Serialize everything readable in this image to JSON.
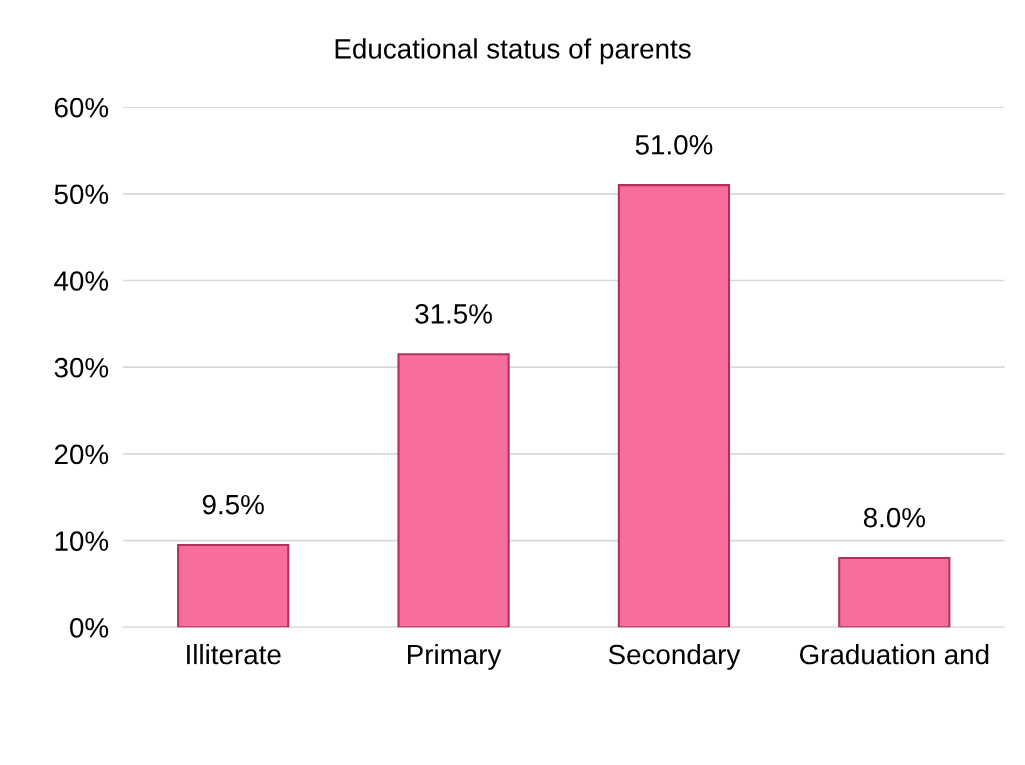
{
  "chart_data": {
    "type": "bar",
    "title": "Educational status of parents",
    "categories": [
      "Illiterate",
      "Primary",
      "Secondary",
      "Graduation and"
    ],
    "values": [
      9.5,
      31.5,
      51.0,
      8.0
    ],
    "value_labels": [
      "9.5%",
      "31.5%",
      "51.0%",
      "8.0%"
    ],
    "color": "#f76d9c",
    "ylim": [
      0,
      60
    ],
    "yticks": [
      {
        "value": 0,
        "label": "0%"
      },
      {
        "value": 10,
        "label": "10%"
      },
      {
        "value": 20,
        "label": "20%"
      },
      {
        "value": 30,
        "label": "30%"
      },
      {
        "value": 40,
        "label": "40%"
      },
      {
        "value": 50,
        "label": "50%"
      },
      {
        "value": 60,
        "label": "60%"
      }
    ],
    "grid": "y"
  }
}
